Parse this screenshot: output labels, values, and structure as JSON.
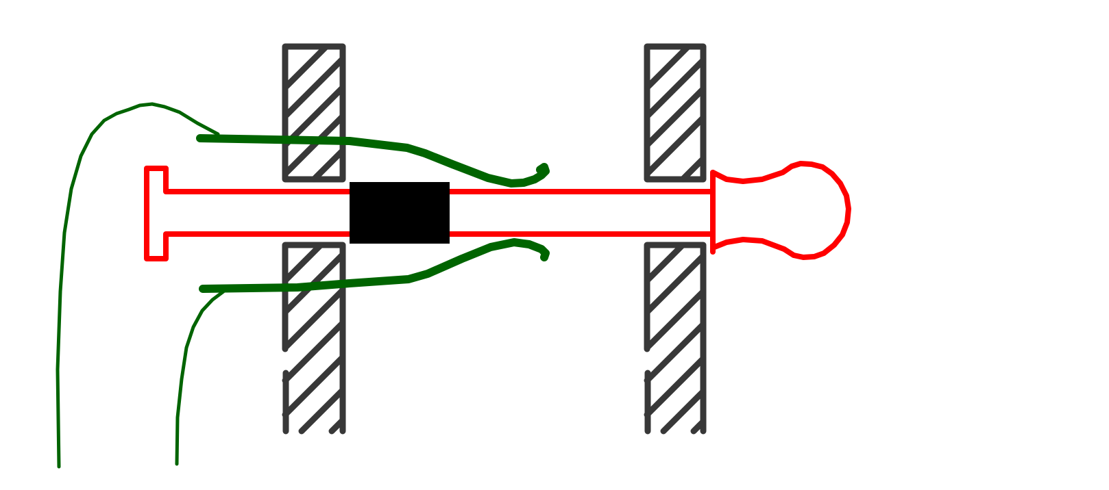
{
  "diagram": {
    "colors": {
      "background": "#ffffff",
      "wall": "#383838",
      "tube": "#ff0000",
      "wire": "#006400",
      "block": "#000000"
    },
    "components": [
      {
        "name": "wall-panel-left-upper",
        "kind": "hatched-panel"
      },
      {
        "name": "wall-panel-left-lower",
        "kind": "hatched-panel"
      },
      {
        "name": "wall-panel-right-upper",
        "kind": "hatched-panel"
      },
      {
        "name": "wall-panel-right-lower",
        "kind": "hatched-panel"
      },
      {
        "name": "red-tube",
        "kind": "outline"
      },
      {
        "name": "red-bulb",
        "kind": "outline"
      },
      {
        "name": "black-block",
        "kind": "solid"
      },
      {
        "name": "green-wire-upper",
        "kind": "stroke"
      },
      {
        "name": "green-wire-lower",
        "kind": "stroke"
      }
    ]
  }
}
